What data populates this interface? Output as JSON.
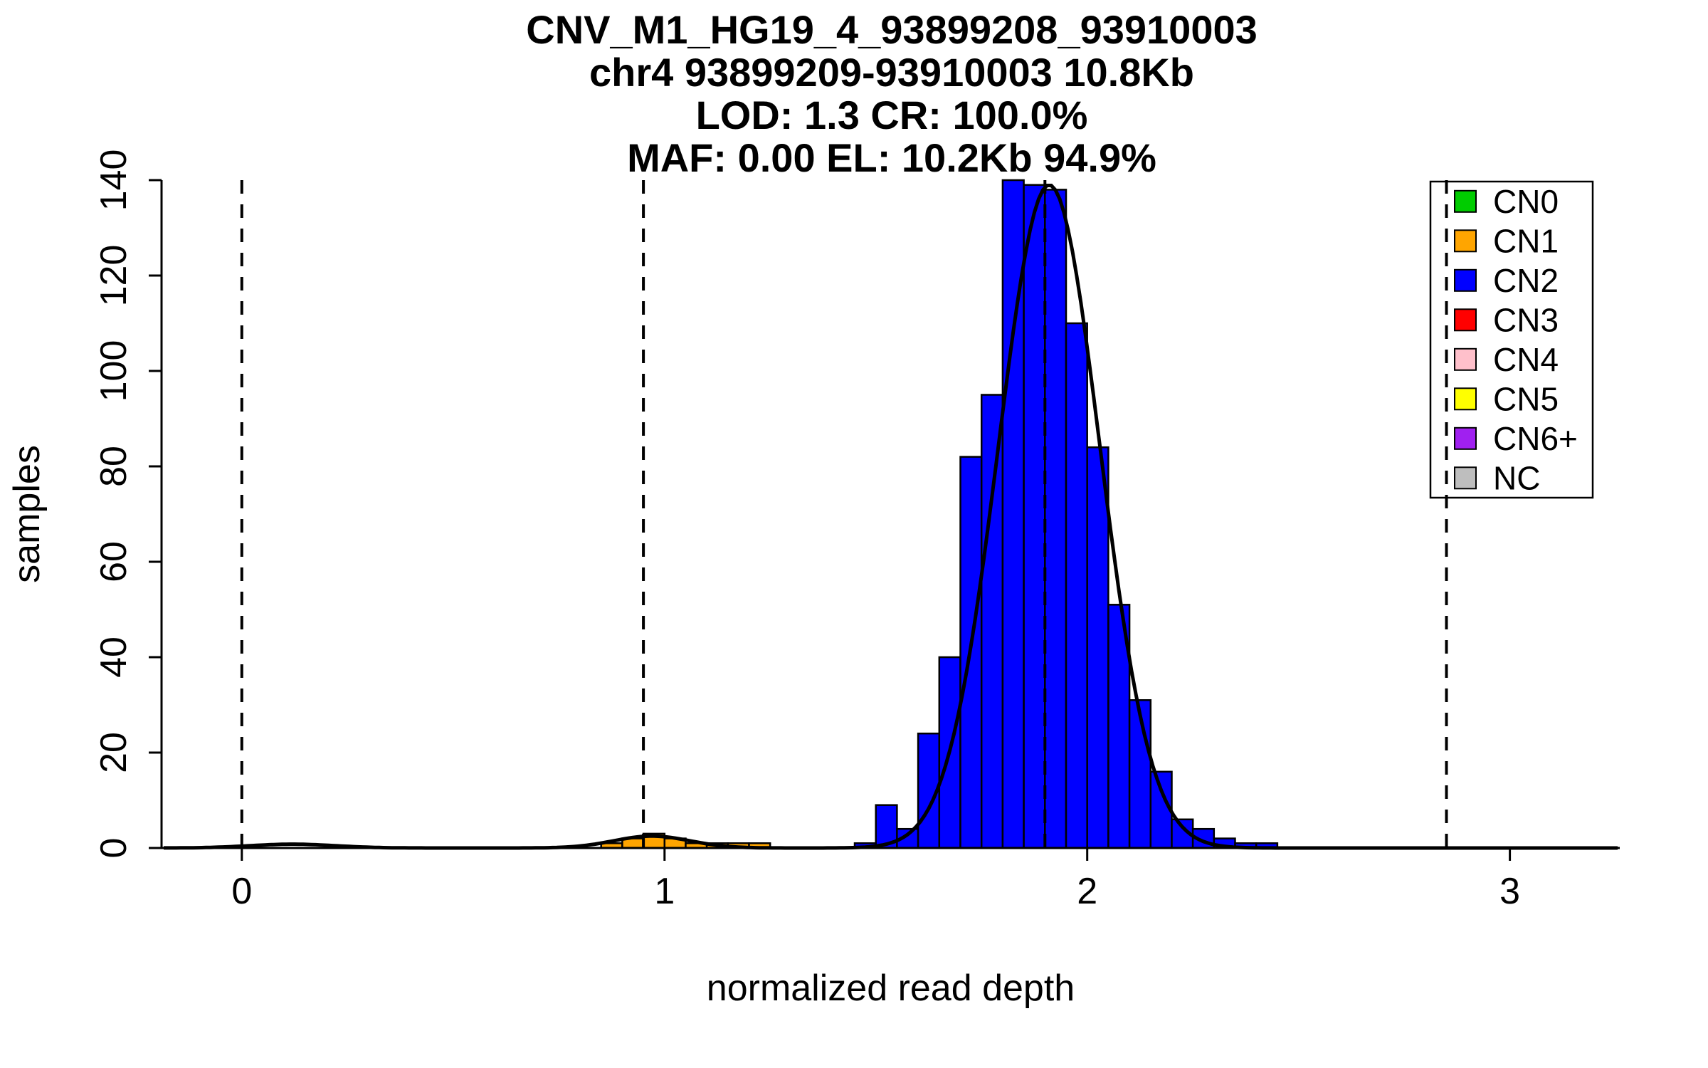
{
  "chart_data": {
    "type": "bar",
    "title": "CNV_M1_HG19_4_93899208_93910003 chr4 93899209-93910003 10.8Kb LOD: 1.3 CR: 100.0% MAF: 0.00 EL: 10.2Kb 94.9%",
    "title_lines": [
      "CNV_M1_HG19_4_93899208_93910003",
      "chr4 93899209-93910003 10.8Kb",
      "LOD: 1.3 CR: 100.0%",
      "MAF: 0.00 EL: 10.2Kb 94.9%"
    ],
    "xlabel": "normalized read depth",
    "ylabel": "samples",
    "xlim": [
      -0.19,
      3.26
    ],
    "ylim": [
      0,
      140
    ],
    "x_ticks": [
      0,
      1,
      2,
      3
    ],
    "y_ticks": [
      0,
      20,
      40,
      60,
      80,
      100,
      120,
      140
    ],
    "grid": false,
    "bin_width": 0.05,
    "series": [
      {
        "name": "CN1",
        "color": "#FFA500",
        "bars": [
          [
            0.85,
            1
          ],
          [
            0.9,
            2
          ],
          [
            0.95,
            3
          ],
          [
            1.0,
            2
          ],
          [
            1.05,
            1
          ],
          [
            1.1,
            1
          ],
          [
            1.15,
            1
          ],
          [
            1.2,
            1
          ]
        ]
      },
      {
        "name": "CN2",
        "color": "#0000FF",
        "bars": [
          [
            1.45,
            1
          ],
          [
            1.5,
            9
          ],
          [
            1.55,
            4
          ],
          [
            1.6,
            24
          ],
          [
            1.65,
            40
          ],
          [
            1.7,
            82
          ],
          [
            1.75,
            95
          ],
          [
            1.8,
            140
          ],
          [
            1.85,
            139
          ],
          [
            1.9,
            138
          ],
          [
            1.95,
            110
          ],
          [
            2.0,
            84
          ],
          [
            2.05,
            51
          ],
          [
            2.1,
            31
          ],
          [
            2.15,
            16
          ],
          [
            2.2,
            6
          ],
          [
            2.25,
            4
          ],
          [
            2.3,
            2
          ],
          [
            2.35,
            1
          ],
          [
            2.4,
            1
          ]
        ]
      }
    ],
    "cluster_mean_lines": [
      0,
      0.95,
      1.9,
      2.85
    ],
    "fit_curve_components": [
      {
        "mean": 0.12,
        "sd": 0.1,
        "amp": 0.8
      },
      {
        "mean": 0.97,
        "sd": 0.09,
        "amp": 2.5
      },
      {
        "mean": 1.91,
        "sd": 0.12,
        "amp": 139
      }
    ],
    "legend": {
      "position": "top-right",
      "entries": [
        {
          "label": "CN0",
          "color": "#00CC00"
        },
        {
          "label": "CN1",
          "color": "#FFA500"
        },
        {
          "label": "CN2",
          "color": "#0000FF"
        },
        {
          "label": "CN3",
          "color": "#FF0000"
        },
        {
          "label": "CN4",
          "color": "#FFC0CB"
        },
        {
          "label": "CN5",
          "color": "#FFFF00"
        },
        {
          "label": "CN6+",
          "color": "#A020F0"
        },
        {
          "label": "NC",
          "color": "#BEBEBE"
        }
      ]
    }
  }
}
